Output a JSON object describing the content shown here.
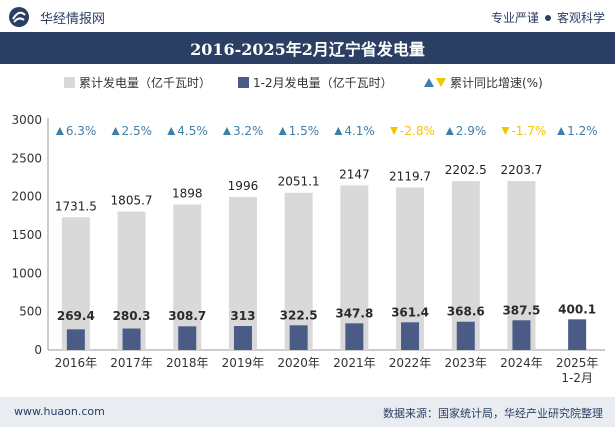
{
  "header": {
    "brand": "华经情报网",
    "slogan_left": "专业严谨",
    "slogan_right": "客观科学"
  },
  "title": "2016-2025年2月辽宁省发电量",
  "legend": {
    "series1": "累计发电量（亿千瓦时）",
    "series2": "1-2月发电量（亿千瓦时）",
    "growth": "累计同比增速(%)"
  },
  "footer": {
    "website": "www.huaon.com",
    "source": "数据来源：国家统计局，华经产业研究院整理"
  },
  "colors": {
    "header_bg": "#2b3e63",
    "cumulative": "#d9d9d9",
    "monthly": "#4a5b86",
    "up": "#3e7fa8",
    "down": "#f5c400"
  },
  "chart_data": {
    "type": "bar",
    "categories": [
      "2016年",
      "2017年",
      "2018年",
      "2019年",
      "2020年",
      "2021年",
      "2022年",
      "2023年",
      "2024年",
      "2025年\n1-2月"
    ],
    "series": [
      {
        "name": "累计发电量（亿千瓦时）",
        "values": [
          1731.5,
          1805.7,
          1898,
          1996,
          2051.1,
          2147,
          2119.7,
          2202.5,
          2203.7,
          null
        ]
      },
      {
        "name": "1-2月发电量（亿千瓦时）",
        "values": [
          269.4,
          280.3,
          308.7,
          313,
          322.5,
          347.8,
          361.4,
          368.6,
          387.5,
          400.1
        ]
      },
      {
        "name": "累计同比增速(%)",
        "values": [
          6.3,
          2.5,
          4.5,
          3.2,
          1.5,
          4.1,
          -2.8,
          2.9,
          -1.7,
          1.2
        ]
      }
    ],
    "ylim": [
      0,
      3000
    ],
    "yticks": [
      0,
      500,
      1000,
      1500,
      2000,
      2500,
      3000
    ],
    "grid": false,
    "legend_position": "top"
  }
}
